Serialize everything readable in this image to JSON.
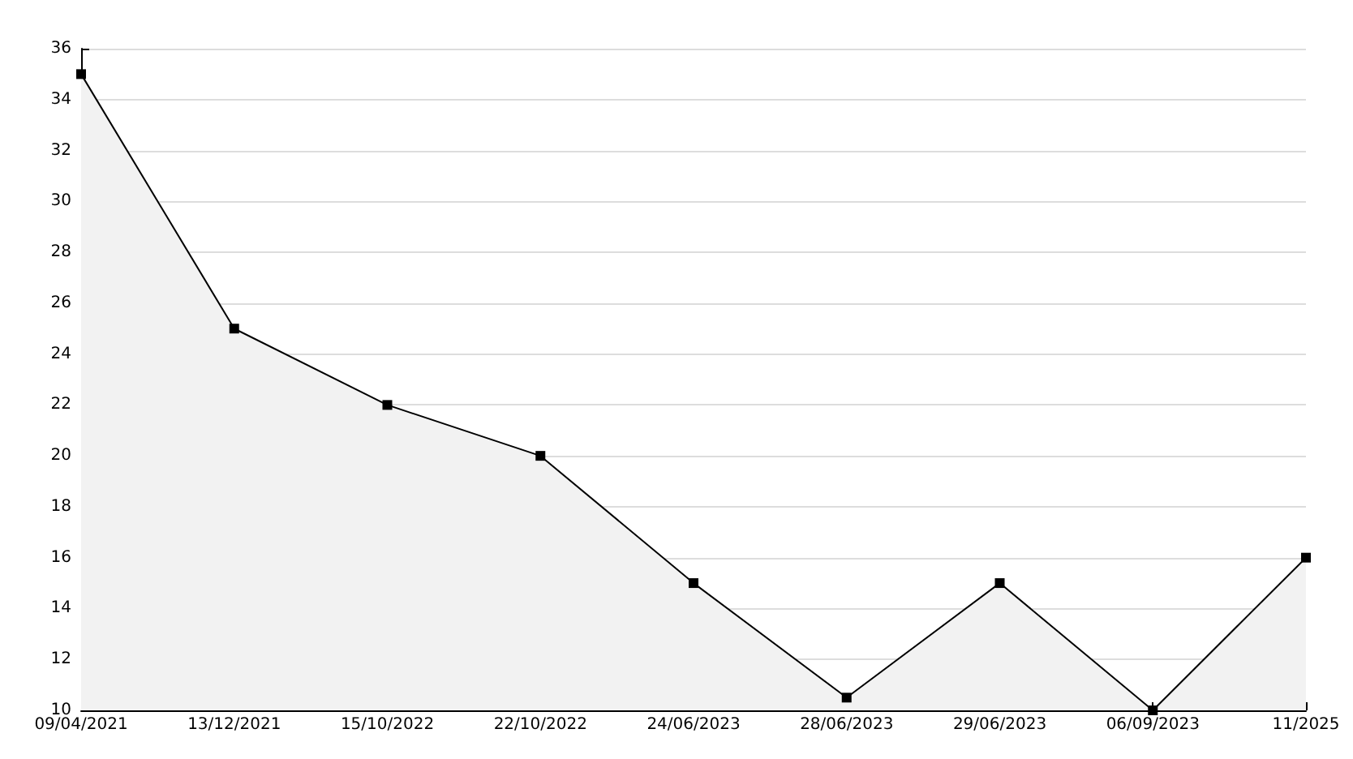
{
  "chart_data": {
    "type": "area",
    "categories": [
      "09/04/2021",
      "13/12/2021",
      "15/10/2022",
      "22/10/2022",
      "24/06/2023",
      "28/06/2023",
      "29/06/2023",
      "06/09/2023",
      "11/2025"
    ],
    "series": [
      {
        "color": "#000000",
        "values": [
          35,
          25,
          22,
          20,
          15,
          10.5,
          15,
          10,
          16
        ]
      }
    ],
    "ylim": [
      10,
      36
    ],
    "yticks": [
      10,
      12,
      14,
      16,
      18,
      20,
      22,
      24,
      26,
      28,
      30,
      32,
      34,
      36
    ],
    "grid": "y",
    "marker": "square",
    "line_style": "solid"
  }
}
